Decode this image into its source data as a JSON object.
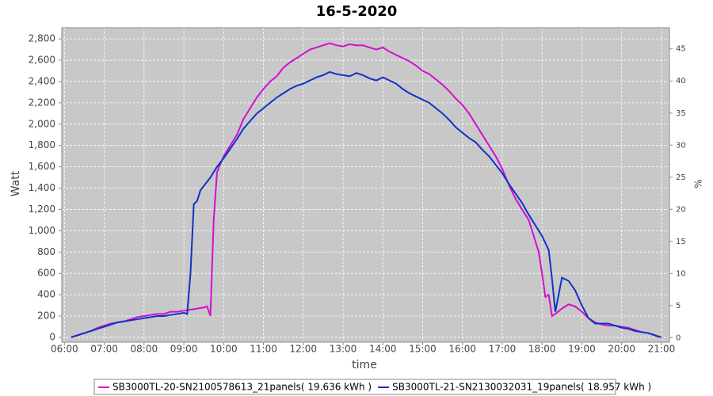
{
  "chart_data": {
    "type": "line",
    "title": "16-5-2020",
    "x_label": "time",
    "y_label": "Watt",
    "y2_label": "%",
    "xlim": [
      "05:56",
      "21:12"
    ],
    "xticks": [
      "06:00",
      "07:00",
      "08:00",
      "09:00",
      "10:00",
      "11:00",
      "12:00",
      "13:00",
      "14:00",
      "15:00",
      "16:00",
      "17:00",
      "18:00",
      "19:00",
      "20:00",
      "21:00"
    ],
    "ylim": [
      -45,
      2905
    ],
    "yticks": [
      0,
      200,
      400,
      600,
      800,
      {
        "value": 1000,
        "label": "1,000"
      },
      {
        "value": 1200,
        "label": "1,200"
      },
      {
        "value": 1400,
        "label": "1,400"
      },
      {
        "value": 1600,
        "label": "1,600"
      },
      {
        "value": 1800,
        "label": "1,800"
      },
      {
        "value": 2000,
        "label": "2,000"
      },
      {
        "value": 2200,
        "label": "2,200"
      },
      {
        "value": 2400,
        "label": "2,400"
      },
      {
        "value": 2600,
        "label": "2,600"
      },
      {
        "value": 2800,
        "label": "2,800"
      }
    ],
    "y2lim": [
      -0.7,
      48.3
    ],
    "y2ticks": [
      0,
      5,
      10,
      15,
      20,
      25,
      30,
      35,
      40,
      45
    ],
    "grid": true,
    "legend": "bottom",
    "series": [
      {
        "name": "SB3000TL-20-SN2100578613_21panels( 19.636 kWh )",
        "color": "#d20fd2",
        "x": [
          "06:10",
          "06:20",
          "06:30",
          "06:40",
          "06:50",
          "07:00",
          "07:10",
          "07:20",
          "07:30",
          "07:40",
          "07:50",
          "08:00",
          "08:10",
          "08:20",
          "08:30",
          "08:40",
          "08:50",
          "09:00",
          "09:10",
          "09:20",
          "09:30",
          "09:35",
          "09:40",
          "09:45",
          "09:50",
          "10:00",
          "10:10",
          "10:20",
          "10:30",
          "10:40",
          "10:50",
          "11:00",
          "11:10",
          "11:20",
          "11:30",
          "11:40",
          "11:50",
          "12:00",
          "12:10",
          "12:20",
          "12:30",
          "12:40",
          "12:50",
          "13:00",
          "13:10",
          "13:20",
          "13:30",
          "13:40",
          "13:50",
          "14:00",
          "14:10",
          "14:20",
          "14:30",
          "14:40",
          "14:50",
          "15:00",
          "15:10",
          "15:20",
          "15:30",
          "15:40",
          "15:50",
          "16:00",
          "16:10",
          "16:20",
          "16:30",
          "16:40",
          "16:50",
          "17:00",
          "17:10",
          "17:20",
          "17:30",
          "17:40",
          "17:50",
          "17:55",
          "18:00",
          "18:05",
          "18:10",
          "18:15",
          "18:20",
          "18:30",
          "18:40",
          "18:50",
          "19:00",
          "19:10",
          "19:20",
          "19:30",
          "19:40",
          "19:50",
          "20:00",
          "20:10",
          "20:20",
          "20:30",
          "20:40",
          "20:50",
          "20:55"
        ],
        "values": [
          0,
          20,
          40,
          60,
          90,
          110,
          130,
          140,
          150,
          170,
          190,
          200,
          210,
          220,
          220,
          240,
          240,
          250,
          260,
          270,
          280,
          290,
          200,
          1100,
          1550,
          1700,
          1800,
          1900,
          2050,
          2150,
          2250,
          2330,
          2400,
          2450,
          2530,
          2580,
          2620,
          2660,
          2700,
          2720,
          2740,
          2760,
          2740,
          2730,
          2750,
          2740,
          2740,
          2720,
          2700,
          2720,
          2680,
          2650,
          2620,
          2590,
          2550,
          2500,
          2470,
          2420,
          2370,
          2310,
          2240,
          2180,
          2100,
          2000,
          1900,
          1800,
          1700,
          1580,
          1430,
          1300,
          1200,
          1100,
          900,
          800,
          600,
          380,
          400,
          200,
          220,
          270,
          310,
          290,
          240,
          180,
          140,
          120,
          110,
          110,
          100,
          90,
          70,
          50,
          40,
          20,
          0
        ]
      },
      {
        "name": "SB3000TL-21-SN2130032031_19panels( 18.957 kWh )",
        "color": "#1032c8",
        "x": [
          "06:10",
          "06:20",
          "06:30",
          "06:40",
          "06:50",
          "07:00",
          "07:10",
          "07:20",
          "07:30",
          "07:40",
          "07:50",
          "08:00",
          "08:10",
          "08:20",
          "08:30",
          "08:40",
          "08:50",
          "09:00",
          "09:05",
          "09:10",
          "09:15",
          "09:20",
          "09:25",
          "09:30",
          "09:40",
          "09:50",
          "10:00",
          "10:10",
          "10:20",
          "10:30",
          "10:40",
          "10:50",
          "11:00",
          "11:10",
          "11:20",
          "11:30",
          "11:40",
          "11:50",
          "12:00",
          "12:10",
          "12:20",
          "12:30",
          "12:40",
          "12:50",
          "13:00",
          "13:10",
          "13:20",
          "13:30",
          "13:40",
          "13:50",
          "14:00",
          "14:10",
          "14:20",
          "14:30",
          "14:40",
          "14:50",
          "15:00",
          "15:10",
          "15:20",
          "15:30",
          "15:40",
          "15:50",
          "16:00",
          "16:10",
          "16:20",
          "16:30",
          "16:40",
          "16:50",
          "17:00",
          "17:10",
          "17:20",
          "17:30",
          "17:40",
          "17:50",
          "18:00",
          "18:10",
          "18:15",
          "18:20",
          "18:25",
          "18:30",
          "18:40",
          "18:50",
          "19:00",
          "19:10",
          "19:20",
          "19:30",
          "19:40",
          "19:50",
          "20:00",
          "20:10",
          "20:20",
          "20:30",
          "20:40",
          "20:50",
          "21:00"
        ],
        "values": [
          0,
          20,
          40,
          60,
          80,
          100,
          120,
          140,
          150,
          160,
          170,
          180,
          190,
          200,
          200,
          210,
          220,
          230,
          220,
          600,
          1250,
          1280,
          1380,
          1420,
          1500,
          1600,
          1680,
          1770,
          1860,
          1960,
          2030,
          2100,
          2150,
          2200,
          2250,
          2290,
          2330,
          2360,
          2380,
          2410,
          2440,
          2460,
          2490,
          2470,
          2460,
          2450,
          2480,
          2460,
          2430,
          2410,
          2440,
          2410,
          2380,
          2330,
          2290,
          2260,
          2230,
          2200,
          2150,
          2100,
          2040,
          1970,
          1920,
          1870,
          1830,
          1760,
          1700,
          1620,
          1540,
          1440,
          1350,
          1260,
          1150,
          1050,
          950,
          820,
          550,
          240,
          400,
          560,
          530,
          440,
          300,
          180,
          130,
          130,
          130,
          110,
          90,
          80,
          60,
          50,
          40,
          20,
          0
        ]
      }
    ]
  }
}
